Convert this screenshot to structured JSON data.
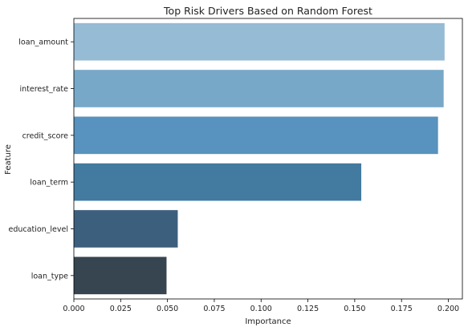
{
  "chart_data": {
    "type": "bar",
    "orientation": "horizontal",
    "title": "Top Risk Drivers Based on Random Forest",
    "xlabel": "Importance",
    "ylabel": "Feature",
    "categories": [
      "loan_amount",
      "interest_rate",
      "credit_score",
      "loan_term",
      "education_level",
      "loan_type"
    ],
    "values": [
      0.198,
      0.1975,
      0.1945,
      0.1535,
      0.0555,
      0.0495
    ],
    "xlim": [
      0,
      0.2075
    ],
    "xticks": [
      "0.000",
      "0.025",
      "0.050",
      "0.075",
      "0.100",
      "0.125",
      "0.150",
      "0.175",
      "0.200"
    ],
    "xtick_values": [
      0,
      0.025,
      0.05,
      0.075,
      0.1,
      0.125,
      0.15,
      0.175,
      0.2
    ],
    "grid": false,
    "bar_colors": [
      "#95bbd5",
      "#78a8c8",
      "#5892be",
      "#427aa0",
      "#3c5f7d",
      "#36454f"
    ]
  }
}
